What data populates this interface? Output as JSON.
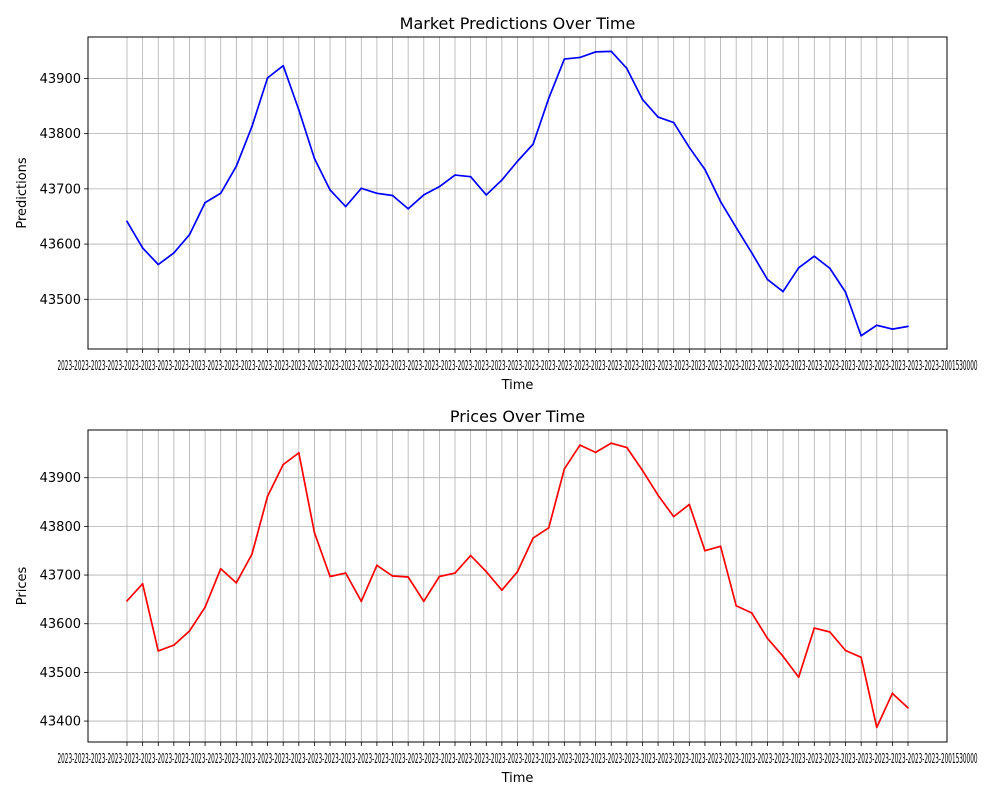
{
  "chart_data": [
    {
      "type": "line",
      "title": "Market Predictions Over Time",
      "xlabel": "Time",
      "ylabel": "Predictions",
      "grid": true,
      "ylim": [
        43410,
        43975
      ],
      "yticks": [
        43500,
        43600,
        43700,
        43800,
        43900
      ],
      "color": "#0000ff",
      "x_tick_labels_text": "2023-2023-2023-2023-2023-2023-2023-2023-2023-2023-2023-2023-2023-2023-2023-2023-2023-2023-2023-2023-2023-2023-2023-2023-2023-2023-2023-2023-2023-2023-2023-2023-2023-2023-2023-2023-2023-2023-2023-2023-2023-2023-2023-2023-2023-2023-2023-2023-2023-2023-2023-2023-2023-2001530000",
      "values": [
        43641,
        43593,
        43563,
        43584,
        43617,
        43675,
        43692,
        43741,
        43813,
        43901,
        43923,
        43843,
        43755,
        43698,
        43668,
        43701,
        43692,
        43688,
        43664,
        43689,
        43704,
        43725,
        43722,
        43689,
        43716,
        43750,
        43781,
        43864,
        43935,
        43938,
        43948,
        43949,
        43918,
        43862,
        43830,
        43820,
        43775,
        43735,
        43677,
        43630,
        43584,
        43536,
        43514,
        43557,
        43578,
        43556,
        43513,
        43434,
        43453,
        43446,
        43451
      ]
    },
    {
      "type": "line",
      "title": "Prices Over Time",
      "xlabel": "Time",
      "ylabel": "Prices",
      "grid": true,
      "ylim": [
        43357,
        43998
      ],
      "yticks": [
        43400,
        43500,
        43600,
        43700,
        43800,
        43900
      ],
      "color": "#ff0000",
      "x_tick_labels_text": "2023-2023-2023-2023-2023-2023-2023-2023-2023-2023-2023-2023-2023-2023-2023-2023-2023-2023-2023-2023-2023-2023-2023-2023-2023-2023-2023-2023-2023-2023-2023-2023-2023-2023-2023-2023-2023-2023-2023-2023-2023-2023-2023-2023-2023-2023-2023-2023-2023-2023-2023-2023-2023-2001530000",
      "values": [
        43647,
        43682,
        43544,
        43556,
        43585,
        43634,
        43713,
        43684,
        43743,
        43862,
        43927,
        43951,
        43787,
        43697,
        43704,
        43646,
        43720,
        43698,
        43696,
        43646,
        43697,
        43704,
        43740,
        43707,
        43669,
        43707,
        43776,
        43797,
        43918,
        43967,
        43952,
        43971,
        43962,
        43915,
        43864,
        43820,
        43845,
        43750,
        43759,
        43637,
        43622,
        43570,
        43533,
        43490,
        43591,
        43583,
        43545,
        43531,
        43387,
        43457,
        43427
      ]
    }
  ]
}
